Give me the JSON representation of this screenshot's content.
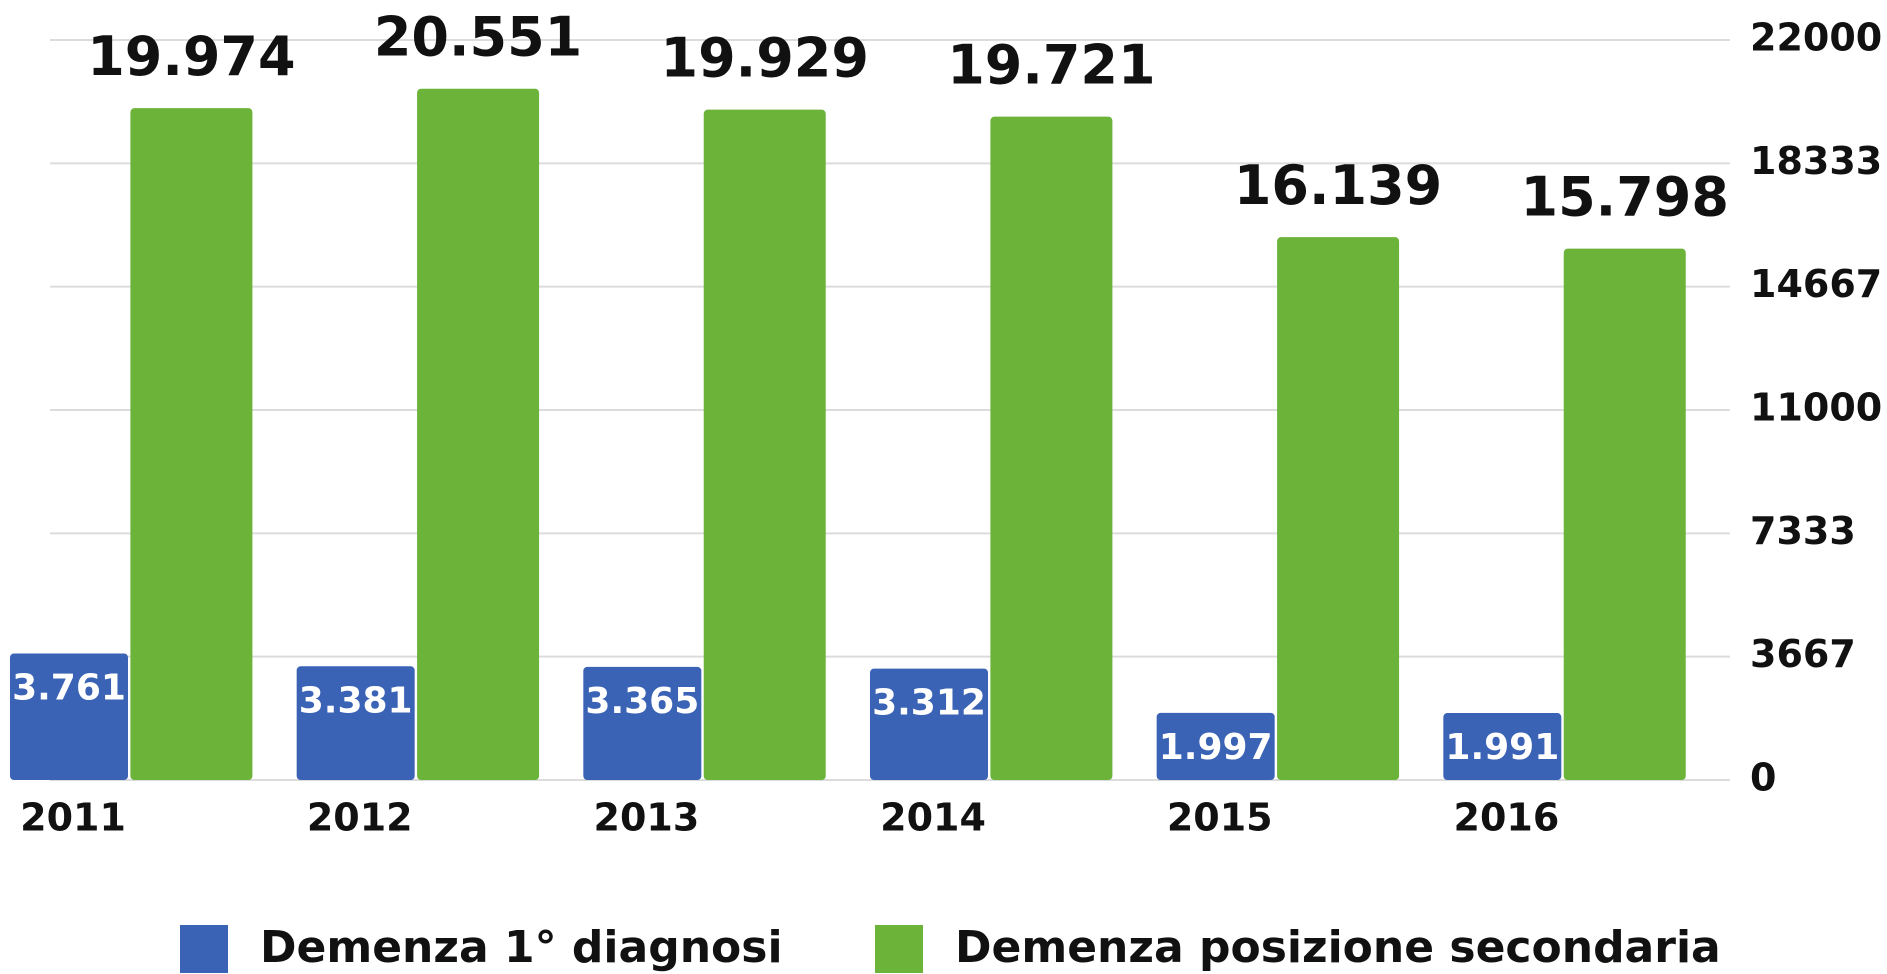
{
  "chart_data": {
    "type": "bar",
    "categories": [
      "2011",
      "2012",
      "2013",
      "2014",
      "2015",
      "2016"
    ],
    "series": [
      {
        "name": "Demenza 1° diagnosi",
        "color": "#3a62b5",
        "values": [
          3761,
          3381,
          3365,
          3312,
          1997,
          1991
        ],
        "value_labels": [
          "3.761",
          "3.381",
          "3.365",
          "3.312",
          "1.997",
          "1.991"
        ]
      },
      {
        "name": "Demenza posizione secondaria",
        "color": "#6cb33a",
        "values": [
          19974,
          20551,
          19929,
          19721,
          16139,
          15798
        ],
        "value_labels": [
          "19.974",
          "20.551",
          "19.929",
          "19.721",
          "16.139",
          "15.798"
        ]
      }
    ],
    "ylim": [
      0,
      22000
    ],
    "yticks": [
      0,
      3667,
      7333,
      11000,
      14667,
      18333,
      22000
    ],
    "grid": true,
    "legend": "bottom"
  }
}
